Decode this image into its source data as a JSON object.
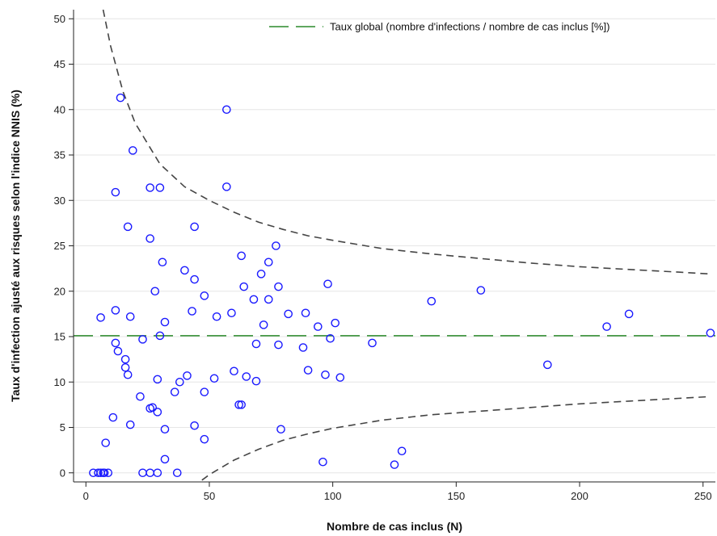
{
  "chart_data": {
    "type": "scatter",
    "xlabel": "Nombre de cas inclus (N)",
    "ylabel": "Taux d'infection ajusté aux risques selon l'indice NNIS (%)",
    "xlim": [
      -5,
      255
    ],
    "ylim": [
      -1,
      51
    ],
    "xticks": [
      0,
      50,
      100,
      150,
      200,
      250
    ],
    "yticks": [
      0,
      5,
      10,
      15,
      20,
      25,
      30,
      35,
      40,
      45,
      50
    ],
    "grid": "horizontal",
    "legend_position": "top-right",
    "overall_rate": 15.1,
    "legend_label": "Taux global (nombre d'infections / nombre de cas inclus [%])",
    "colors": {
      "points": "#1a1aff",
      "overall_line": "#2a8a2a",
      "limit_curves": "#444444",
      "grid": "#e6e6e6"
    },
    "limit_curves": {
      "upper": [
        [
          7,
          51
        ],
        [
          10,
          47
        ],
        [
          15,
          42
        ],
        [
          20,
          38.5
        ],
        [
          30,
          34
        ],
        [
          40,
          31.5
        ],
        [
          50,
          30
        ],
        [
          60,
          28.7
        ],
        [
          70,
          27.6
        ],
        [
          80,
          26.8
        ],
        [
          90,
          26.1
        ],
        [
          100,
          25.6
        ],
        [
          120,
          24.7
        ],
        [
          140,
          24.1
        ],
        [
          160,
          23.6
        ],
        [
          180,
          23.1
        ],
        [
          200,
          22.7
        ],
        [
          220,
          22.4
        ],
        [
          240,
          22.1
        ],
        [
          253,
          21.9
        ]
      ],
      "lower": [
        [
          47,
          -0.8
        ],
        [
          50,
          -0.2
        ],
        [
          55,
          0.6
        ],
        [
          60,
          1.4
        ],
        [
          70,
          2.6
        ],
        [
          80,
          3.6
        ],
        [
          90,
          4.3
        ],
        [
          100,
          4.9
        ],
        [
          120,
          5.8
        ],
        [
          140,
          6.4
        ],
        [
          160,
          6.8
        ],
        [
          180,
          7.2
        ],
        [
          200,
          7.6
        ],
        [
          220,
          7.9
        ],
        [
          240,
          8.2
        ],
        [
          253,
          8.4
        ]
      ]
    },
    "points": [
      [
        3,
        0
      ],
      [
        5,
        0
      ],
      [
        6,
        0
      ],
      [
        7,
        0
      ],
      [
        7.5,
        0
      ],
      [
        9,
        0
      ],
      [
        6,
        17.1
      ],
      [
        8,
        3.3
      ],
      [
        11,
        6.1
      ],
      [
        12,
        17.9
      ],
      [
        12,
        14.3
      ],
      [
        12,
        30.9
      ],
      [
        13,
        13.4
      ],
      [
        14,
        41.3
      ],
      [
        16,
        12.5
      ],
      [
        16,
        11.6
      ],
      [
        17,
        10.8
      ],
      [
        17,
        27.1
      ],
      [
        18,
        17.2
      ],
      [
        18,
        5.3
      ],
      [
        19,
        35.5
      ],
      [
        22,
        8.4
      ],
      [
        23,
        14.7
      ],
      [
        23,
        0
      ],
      [
        26,
        31.4
      ],
      [
        26,
        25.8
      ],
      [
        26,
        7.1
      ],
      [
        26,
        0
      ],
      [
        27,
        7.2
      ],
      [
        28,
        20
      ],
      [
        29,
        10.3
      ],
      [
        29,
        6.7
      ],
      [
        29,
        0
      ],
      [
        30,
        31.4
      ],
      [
        30,
        15.1
      ],
      [
        31,
        23.2
      ],
      [
        32,
        16.6
      ],
      [
        32,
        4.8
      ],
      [
        32,
        1.5
      ],
      [
        36,
        8.9
      ],
      [
        37,
        0
      ],
      [
        38,
        10
      ],
      [
        40,
        22.3
      ],
      [
        41,
        10.7
      ],
      [
        43,
        17.8
      ],
      [
        44,
        27.1
      ],
      [
        44,
        21.3
      ],
      [
        44,
        5.2
      ],
      [
        48,
        19.5
      ],
      [
        48,
        8.9
      ],
      [
        48,
        3.7
      ],
      [
        52,
        10.4
      ],
      [
        53,
        17.2
      ],
      [
        57,
        40
      ],
      [
        57,
        31.5
      ],
      [
        59,
        17.6
      ],
      [
        60,
        11.2
      ],
      [
        62,
        7.5
      ],
      [
        63,
        7.5
      ],
      [
        63,
        23.9
      ],
      [
        64,
        20.5
      ],
      [
        65,
        10.6
      ],
      [
        68,
        19.1
      ],
      [
        69,
        14.2
      ],
      [
        69,
        10.1
      ],
      [
        71,
        21.9
      ],
      [
        72,
        16.3
      ],
      [
        74,
        23.2
      ],
      [
        74,
        19.1
      ],
      [
        77,
        25
      ],
      [
        78,
        14.1
      ],
      [
        78,
        20.5
      ],
      [
        79,
        4.8
      ],
      [
        82,
        17.5
      ],
      [
        88,
        13.8
      ],
      [
        89,
        17.6
      ],
      [
        90,
        11.3
      ],
      [
        94,
        16.1
      ],
      [
        96,
        1.2
      ],
      [
        97,
        10.8
      ],
      [
        98,
        20.8
      ],
      [
        99,
        14.8
      ],
      [
        101,
        16.5
      ],
      [
        103,
        10.5
      ],
      [
        116,
        14.3
      ],
      [
        125,
        0.9
      ],
      [
        128,
        2.4
      ],
      [
        140,
        18.9
      ],
      [
        160,
        20.1
      ],
      [
        187,
        11.9
      ],
      [
        211,
        16.1
      ],
      [
        220,
        17.5
      ],
      [
        253,
        15.4
      ]
    ]
  }
}
